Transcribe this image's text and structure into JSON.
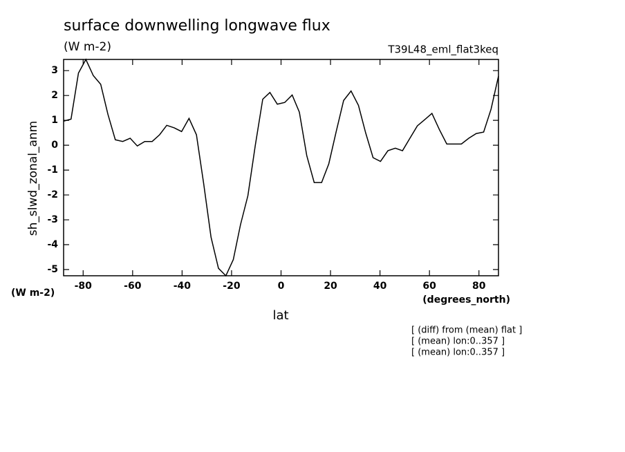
{
  "chart_data": {
    "type": "line",
    "title": "surface downwelling longwave flux",
    "subtitle": "(W m-2)",
    "annotation": "T39L48_eml_flat3keq",
    "ylabel": "sh_slwd_zonal_anm",
    "yunits": "(W m-2)",
    "xunits": "(degrees_north)",
    "xlabel": "lat",
    "notes": [
      "[ (diff) from (mean) flat ]",
      "[ (mean) lon:0..357 ]",
      "[ (mean) lon:0..357 ]"
    ],
    "x": [
      -87.9,
      -84.9,
      -81.9,
      -78.9,
      -75.9,
      -72.9,
      -70.0,
      -67.0,
      -64.0,
      -61.0,
      -58.1,
      -55.1,
      -52.1,
      -49.1,
      -46.2,
      -43.2,
      -40.2,
      -37.2,
      -34.2,
      -31.3,
      -28.3,
      -25.3,
      -22.3,
      -19.3,
      -16.4,
      -13.4,
      -10.4,
      -7.4,
      -4.5,
      -1.5,
      1.5,
      4.5,
      7.4,
      10.4,
      13.4,
      16.4,
      19.3,
      22.3,
      25.3,
      28.3,
      31.3,
      34.2,
      37.2,
      40.2,
      43.2,
      46.2,
      49.1,
      52.1,
      55.1,
      58.1,
      61.0,
      64.0,
      67.0,
      70.0,
      72.9,
      75.9,
      78.9,
      81.9,
      84.9,
      87.9
    ],
    "series": [
      {
        "color": "#000000",
        "values": [
          0.97,
          1.05,
          2.9,
          3.45,
          2.8,
          2.45,
          1.25,
          0.22,
          0.15,
          0.28,
          -0.03,
          0.15,
          0.15,
          0.42,
          0.8,
          0.7,
          0.55,
          1.08,
          0.42,
          -1.53,
          -3.7,
          -4.95,
          -5.25,
          -4.6,
          -3.2,
          -2.03,
          0.0,
          1.85,
          2.12,
          1.65,
          1.72,
          2.02,
          1.33,
          -0.42,
          -1.5,
          -1.5,
          -0.75,
          0.55,
          1.8,
          2.18,
          1.6,
          0.5,
          -0.5,
          -0.65,
          -0.22,
          -0.12,
          -0.22,
          0.28,
          0.78,
          1.03,
          1.28,
          0.63,
          0.05,
          0.05,
          0.05,
          0.28,
          0.47,
          0.53,
          1.45,
          2.78
        ]
      }
    ],
    "xlim": [
      -87.9,
      87.9
    ],
    "xticks": [
      -80,
      -60,
      -40,
      -20,
      0,
      20,
      40,
      60,
      80
    ],
    "ylim": [
      -5.25,
      3.45
    ],
    "yticks": [
      -5,
      -4,
      -3,
      -2,
      -1,
      0,
      1,
      2,
      3
    ]
  }
}
